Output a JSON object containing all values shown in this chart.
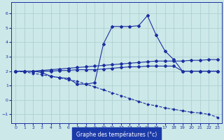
{
  "hours": [
    0,
    1,
    2,
    3,
    4,
    5,
    6,
    7,
    8,
    9,
    10,
    11,
    12,
    13,
    14,
    15,
    16,
    17,
    18,
    19,
    20,
    21,
    22,
    23
  ],
  "line_temp": [
    2.0,
    2.0,
    2.0,
    1.9,
    1.65,
    1.55,
    1.5,
    1.1,
    1.1,
    1.2,
    3.9,
    5.1,
    5.1,
    5.1,
    5.15,
    5.85,
    4.5,
    3.4,
    2.8,
    2.0,
    2.0,
    2.0,
    2.0,
    2.0
  ],
  "line_upper": [
    2.0,
    2.0,
    2.0,
    2.05,
    2.1,
    2.15,
    2.2,
    2.25,
    2.3,
    2.35,
    2.4,
    2.45,
    2.5,
    2.55,
    2.6,
    2.65,
    2.7,
    2.7,
    2.7,
    2.7,
    2.75,
    2.75,
    2.8,
    2.8
  ],
  "line_mid": [
    2.0,
    2.0,
    2.0,
    2.0,
    2.0,
    2.05,
    2.05,
    2.1,
    2.1,
    2.1,
    2.15,
    2.2,
    2.25,
    2.3,
    2.3,
    2.35,
    2.35,
    2.35,
    2.35,
    2.0,
    2.0,
    2.0,
    2.0,
    2.0
  ],
  "line_dashed": [
    2.0,
    1.95,
    1.85,
    1.75,
    1.65,
    1.55,
    1.4,
    1.3,
    1.1,
    0.9,
    0.7,
    0.5,
    0.3,
    0.1,
    -0.1,
    -0.3,
    -0.4,
    -0.55,
    -0.65,
    -0.75,
    -0.85,
    -0.9,
    -1.0,
    -1.2
  ],
  "xlabel": "Graphe des températures (°c)",
  "ylim": [
    -1.6,
    6.8
  ],
  "xlim": [
    -0.5,
    23.5
  ],
  "bg_color": "#cce8e8",
  "line_color": "#1a2fa0",
  "grid_color": "#aacccc",
  "yticks": [
    -1,
    0,
    1,
    2,
    3,
    4,
    5,
    6
  ],
  "xticks": [
    0,
    1,
    2,
    3,
    4,
    5,
    6,
    7,
    8,
    9,
    10,
    11,
    12,
    13,
    14,
    15,
    16,
    17,
    18,
    19,
    20,
    21,
    22,
    23
  ],
  "xlabel_bg": "#1a3aaa",
  "xlabel_fg": "#ffffff"
}
